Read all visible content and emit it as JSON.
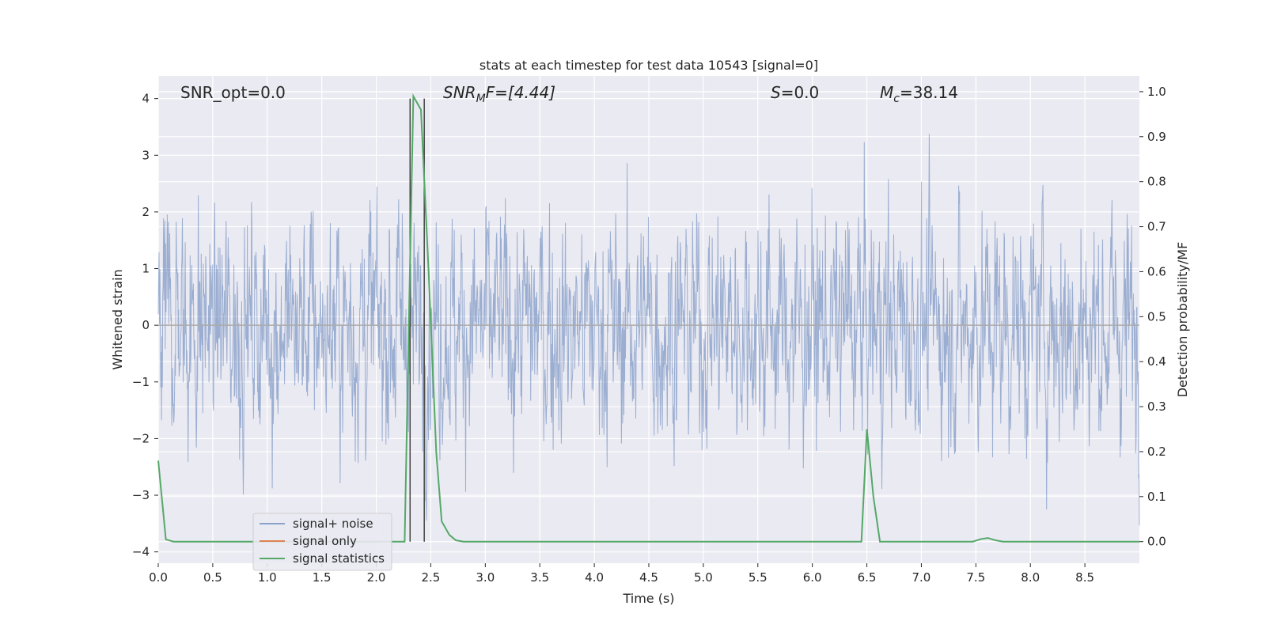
{
  "chart_data": {
    "type": "line",
    "title": "stats at each timestep for test data 10543 [signal=0]",
    "xlabel": "Time (s)",
    "ylabel": "Whitened strain",
    "y2label": "Detection probability/MF",
    "xlim": [
      0.0,
      9.0
    ],
    "ylim": [
      -4.2,
      4.4
    ],
    "y2lim": [
      -0.048,
      1.035
    ],
    "xticks": [
      0.0,
      0.5,
      1.0,
      1.5,
      2.0,
      2.5,
      3.0,
      3.5,
      4.0,
      4.5,
      5.0,
      5.5,
      6.0,
      6.5,
      7.0,
      7.5,
      8.0,
      8.5
    ],
    "xtick_labels": [
      "0.0",
      "0.5",
      "1.0",
      "1.5",
      "2.0",
      "2.5",
      "3.0",
      "3.5",
      "4.0",
      "4.5",
      "5.0",
      "5.5",
      "6.0",
      "6.5",
      "7.0",
      "7.5",
      "8.0",
      "8.5"
    ],
    "yticks": [
      -4,
      -3,
      -2,
      -1,
      0,
      1,
      2,
      3,
      4
    ],
    "ytick_labels": [
      "−4",
      "−3",
      "−2",
      "−1",
      "0",
      "1",
      "2",
      "3",
      "4"
    ],
    "y2ticks": [
      0.0,
      0.1,
      0.2,
      0.3,
      0.4,
      0.5,
      0.6,
      0.7,
      0.8,
      0.9,
      1.0
    ],
    "y2tick_labels": [
      "0.0",
      "0.1",
      "0.2",
      "0.3",
      "0.4",
      "0.5",
      "0.6",
      "0.7",
      "0.8",
      "0.9",
      "1.0"
    ],
    "grid": true,
    "legend": {
      "placement": "lower-left",
      "entries": [
        {
          "name": "signal+ noise",
          "color": "#4c72b0"
        },
        {
          "name": "signal only",
          "color": "#dd8452"
        },
        {
          "name": "signal statistics",
          "color": "#55a868"
        }
      ]
    },
    "annotations": {
      "snr_opt": "SNR_opt=0.0",
      "snr_mf_prefix": "SNR",
      "snr_mf_sub": "M",
      "snr_mf_suffix": "F=[4.44]",
      "s_symbol": "S",
      "s_value": "=0.0",
      "mc_symbol": "M",
      "mc_sub": "c",
      "mc_value": "=38.14"
    },
    "vertical_lines_x": [
      2.31,
      2.44
    ],
    "noise_series": {
      "name": "signal+ noise",
      "typical_range": [
        -1.6,
        1.6
      ],
      "max": 4.0,
      "min": -3.9
    },
    "statistics_series": {
      "name": "signal statistics",
      "points": [
        [
          0.0,
          0.18
        ],
        [
          0.07,
          0.005
        ],
        [
          0.14,
          0.0
        ],
        [
          2.26,
          0.0
        ],
        [
          2.3,
          0.5
        ],
        [
          2.34,
          0.99
        ],
        [
          2.41,
          0.96
        ],
        [
          2.48,
          0.6
        ],
        [
          2.55,
          0.2
        ],
        [
          2.6,
          0.045
        ],
        [
          2.67,
          0.015
        ],
        [
          2.73,
          0.003
        ],
        [
          2.8,
          0.0
        ],
        [
          6.45,
          0.0
        ],
        [
          6.5,
          0.25
        ],
        [
          6.56,
          0.1
        ],
        [
          6.62,
          0.0
        ],
        [
          7.47,
          0.0
        ],
        [
          7.55,
          0.006
        ],
        [
          7.61,
          0.008
        ],
        [
          7.68,
          0.003
        ],
        [
          7.75,
          0.0
        ],
        [
          9.0,
          0.0
        ]
      ]
    },
    "colors": {
      "plot_bg": "#eaeaf2",
      "grid": "#ffffff",
      "noise": "#4c72b0",
      "statistics": "#55a868",
      "signal_only": "#dd8452",
      "vline": "#444444"
    }
  }
}
